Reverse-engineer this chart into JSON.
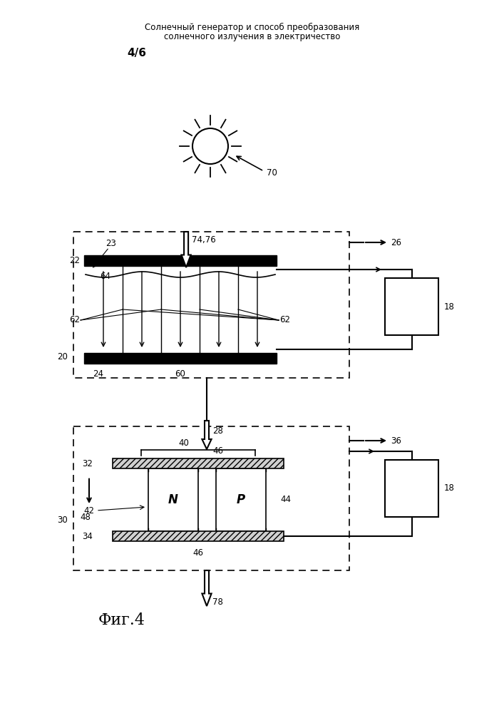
{
  "title_line1": "Солнечный генератор и способ преобразования",
  "title_line2": "солнечного излучения в электричество",
  "page_label": "4/6",
  "fig_label": "Фиг.4",
  "bg_color": "#ffffff",
  "line_color": "#000000"
}
